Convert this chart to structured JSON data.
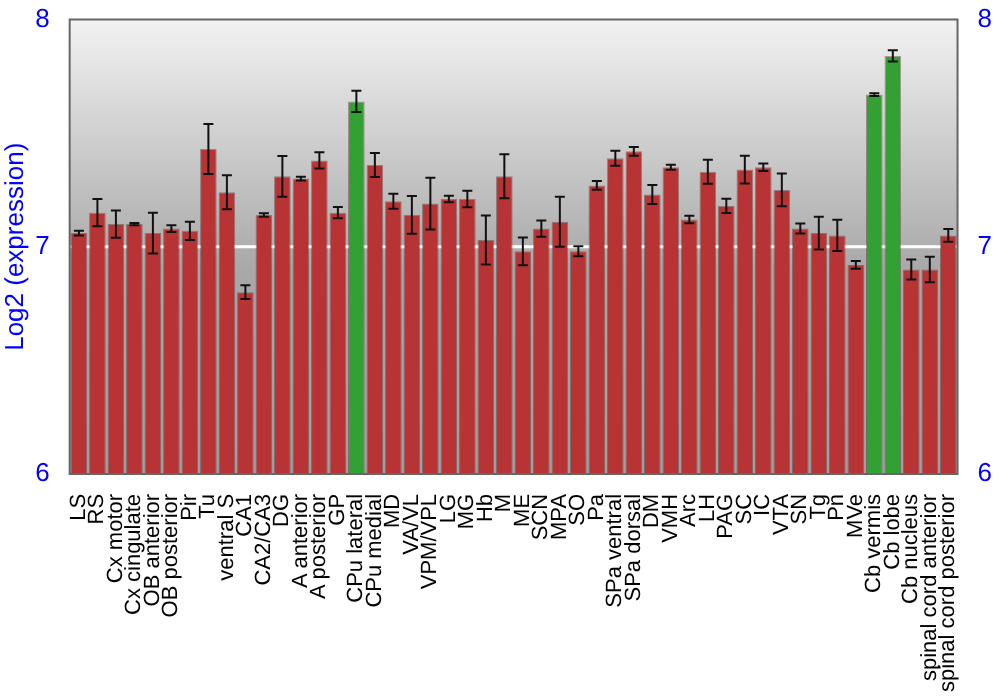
{
  "chart_data": {
    "type": "bar",
    "ylabel": "Log2 (expression)",
    "categories": [
      "LS",
      "RS",
      "Cx motor",
      "Cx cingulate",
      "OB anterior",
      "OB posterior",
      "Pir",
      "Tu",
      "ventral S",
      "CA1",
      "CA2/CA3",
      "DG",
      "A anterior",
      "A posterior",
      "GP",
      "CPu lateral",
      "CPu medial",
      "MD",
      "VA/VL",
      "VPM/VPL",
      "LG",
      "MG",
      "Hb",
      "M",
      "ME",
      "SCN",
      "MPA",
      "SO",
      "Pa",
      "SPa ventral",
      "SPa dorsal",
      "DM",
      "VMH",
      "Arc",
      "LH",
      "PAG",
      "SC",
      "IC",
      "VTA",
      "SN",
      "Tg",
      "Pn",
      "MVe",
      "Cb vermis",
      "Cb lobe",
      "Cb nucleus",
      "spinal cord anterior",
      "spinal cord posterior"
    ],
    "values": [
      7.06,
      7.15,
      7.1,
      7.1,
      7.06,
      7.08,
      7.07,
      7.43,
      7.24,
      6.8,
      7.14,
      7.31,
      7.3,
      7.38,
      7.15,
      7.64,
      7.36,
      7.2,
      7.14,
      7.19,
      7.21,
      7.21,
      7.03,
      7.31,
      6.98,
      7.08,
      7.11,
      6.98,
      7.27,
      7.39,
      7.42,
      7.23,
      7.35,
      7.12,
      7.33,
      7.18,
      7.34,
      7.35,
      7.25,
      7.08,
      7.06,
      7.05,
      6.92,
      7.67,
      7.84,
      6.9,
      6.9,
      7.05
    ],
    "errors": [
      0.01,
      0.06,
      0.06,
      0.005,
      0.09,
      0.015,
      0.04,
      0.11,
      0.075,
      0.03,
      0.008,
      0.09,
      0.008,
      0.036,
      0.025,
      0.047,
      0.053,
      0.033,
      0.083,
      0.114,
      0.014,
      0.036,
      0.108,
      0.097,
      0.061,
      0.036,
      0.11,
      0.022,
      0.019,
      0.033,
      0.019,
      0.042,
      0.011,
      0.017,
      0.053,
      0.031,
      0.061,
      0.017,
      0.072,
      0.022,
      0.072,
      0.069,
      0.017,
      0.006,
      0.025,
      0.044,
      0.056,
      0.028
    ],
    "colors": [
      "#b83434",
      "#b83434",
      "#b83434",
      "#b83434",
      "#b83434",
      "#b83434",
      "#b83434",
      "#b83434",
      "#b83434",
      "#b83434",
      "#b83434",
      "#b83434",
      "#b83434",
      "#b83434",
      "#b83434",
      "#33a033",
      "#b83434",
      "#b83434",
      "#b83434",
      "#b83434",
      "#b83434",
      "#b83434",
      "#b83434",
      "#b83434",
      "#b83434",
      "#b83434",
      "#b83434",
      "#b83434",
      "#b83434",
      "#b83434",
      "#b83434",
      "#b83434",
      "#b83434",
      "#b83434",
      "#b83434",
      "#b83434",
      "#b83434",
      "#b83434",
      "#b83434",
      "#b83434",
      "#b83434",
      "#b83434",
      "#b83434",
      "#33a033",
      "#33a033",
      "#b83434",
      "#b83434",
      "#b83434"
    ],
    "ylim": [
      6,
      8
    ],
    "yticks": [
      6,
      7,
      8
    ],
    "y2lim": [
      6,
      8
    ],
    "y2ticks": [
      6,
      7,
      8
    ],
    "grid": "y"
  }
}
